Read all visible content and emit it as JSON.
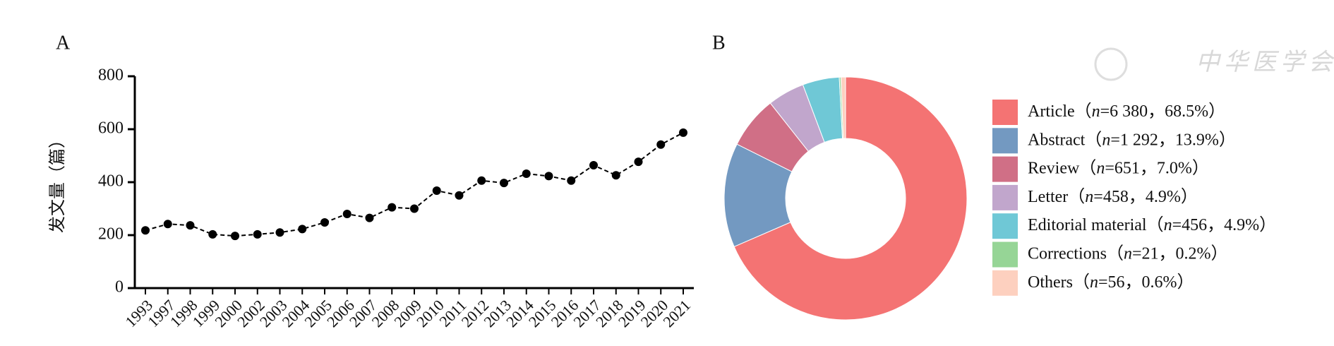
{
  "chart_data": [
    {
      "type": "line",
      "panel_label": "A",
      "y_label": "发文量（篇）",
      "categories": [
        "1993",
        "1997",
        "1998",
        "1999",
        "2000",
        "2002",
        "2003",
        "2004",
        "2005",
        "2006",
        "2007",
        "2008",
        "2009",
        "2010",
        "2011",
        "2012",
        "2013",
        "2014",
        "2015",
        "2016",
        "2017",
        "2018",
        "2019",
        "2020",
        "2021"
      ],
      "values": [
        218,
        242,
        237,
        203,
        197,
        203,
        210,
        223,
        248,
        280,
        265,
        305,
        300,
        368,
        350,
        406,
        397,
        432,
        423,
        406,
        464,
        426,
        477,
        542,
        587
      ],
      "color": "#000000",
      "line_style": "dashed",
      "ylim": [
        0,
        800
      ],
      "yticks": [
        0,
        200,
        400,
        600,
        800
      ]
    },
    {
      "type": "donut",
      "panel_label": "B",
      "categories": [
        "Article（n=6 380，68.5%）",
        "Abstract（n=1 292，13.9%）",
        "Review（n=651，7.0%）",
        "Letter（n=458，4.9%）",
        "Editorial material（n=456，4.9%）",
        "Corrections（n=21，0.2%）",
        "Others（n=56，0.6%）"
      ],
      "values": [
        6380,
        1292,
        651,
        458,
        456,
        21,
        56
      ],
      "colors": [
        "#f47373",
        "#7399c1",
        "#d06f86",
        "#c1a6cc",
        "#6fc8d6",
        "#96d596",
        "#fdd0bf"
      ],
      "legend": "right"
    }
  ],
  "watermark": "中华医学会"
}
